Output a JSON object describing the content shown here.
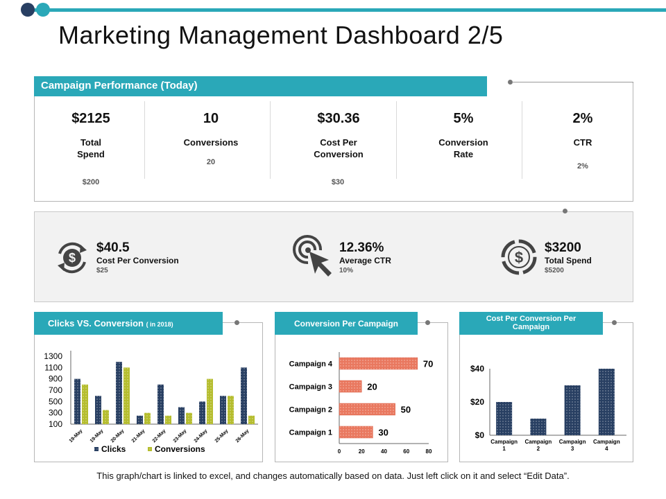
{
  "page": {
    "title": "Marketing Management Dashboard 2/5",
    "footer": "This graph/chart is linked to excel, and changes automatically  based on data. Just left click on it and select “Edit Data”."
  },
  "colors": {
    "teal": "#2aa8b8",
    "navy": "#283f62",
    "olive": "#b5bd2e",
    "salmon": "#e9785f"
  },
  "campaign_performance": {
    "header": "Campaign Performance (Today)",
    "kpis": [
      {
        "value": "$2125",
        "label_line1": "Total",
        "label_line2": "Spend",
        "sub": "$200"
      },
      {
        "value": "10",
        "label_line1": "Conversions",
        "label_line2": "",
        "sub": "20"
      },
      {
        "value": "$30.36",
        "label_line1": "Cost Per",
        "label_line2": "Conversion",
        "sub": "$30"
      },
      {
        "value": "5%",
        "label_line1": "Conversion",
        "label_line2": "Rate",
        "sub": ""
      },
      {
        "value": "2%",
        "label_line1": "CTR",
        "label_line2": "",
        "sub": "2%"
      }
    ]
  },
  "summary": [
    {
      "icon": "dollar-cycle-icon",
      "value": "$40.5",
      "label": "Cost Per Conversion",
      "sub": "$25"
    },
    {
      "icon": "cursor-click-icon",
      "value": "12.36%",
      "label": "Average CTR",
      "sub": "10%"
    },
    {
      "icon": "dollar-coin-icon",
      "value": "$3200",
      "label": "Total Spend",
      "sub": "$5200"
    }
  ],
  "chart_headers": {
    "clicks_title": "Clicks VS. Conversion",
    "clicks_title_note": "( in 2018)",
    "campaign_title": "Conversion Per Campaign",
    "cost_title_line1": "Cost Per Conversion Per",
    "cost_title_line2": "Campaign"
  },
  "chart_data": [
    {
      "type": "bar",
      "title": "Clicks VS. Conversion ( in 2018)",
      "categories": [
        "19-May",
        "19-May",
        "20-May",
        "21-May",
        "22-May",
        "23-May",
        "24-May",
        "25-May",
        "26-May"
      ],
      "series": [
        {
          "name": "Clicks",
          "values": [
            900,
            600,
            1200,
            250,
            800,
            400,
            500,
            600,
            1100
          ]
        },
        {
          "name": "Conversions",
          "values": [
            800,
            350,
            1100,
            300,
            250,
            300,
            900,
            600,
            250
          ]
        }
      ],
      "yticks": [
        "100",
        "300",
        "500",
        "700",
        "900",
        "1100",
        "1300"
      ],
      "ylim": [
        100,
        1300
      ],
      "legend": "bottom"
    },
    {
      "type": "bar",
      "orientation": "horizontal",
      "title": "Conversion Per Campaign",
      "categories": [
        "Campaign 1",
        "Campaign 2",
        "Campaign 3",
        "Campaign 4"
      ],
      "values": [
        30,
        50,
        20,
        70
      ],
      "labels": [
        "30",
        "50",
        "20",
        "70"
      ],
      "xticks": [
        "0",
        "20",
        "40",
        "60",
        "80"
      ],
      "xlim": [
        0,
        80
      ]
    },
    {
      "type": "bar",
      "title": "Cost Per Conversion Per Campaign",
      "categories": [
        "Campaign 1",
        "Campaign 2",
        "Campaign 3",
        "Campaign 4"
      ],
      "cat_line1": [
        "Campaign",
        "Campaign",
        "Campaign",
        "Campaign"
      ],
      "cat_line2": [
        "1",
        "2",
        "3",
        "4"
      ],
      "values": [
        20,
        10,
        30,
        40
      ],
      "yticks": [
        "$0",
        "$20",
        "$40"
      ],
      "ylim": [
        0,
        40
      ]
    }
  ]
}
